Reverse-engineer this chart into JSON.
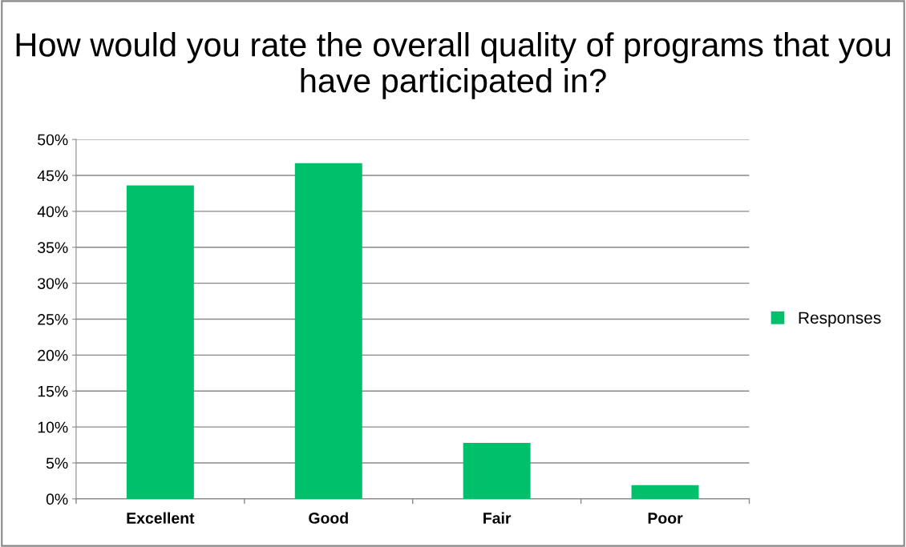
{
  "chart_data": {
    "type": "bar",
    "title": "How would you rate the overall quality of programs that you have participated in?",
    "categories": [
      "Excellent",
      "Good",
      "Fair",
      "Poor"
    ],
    "series": [
      {
        "name": "Responses",
        "color": "#00c06c",
        "values": [
          43.6,
          46.7,
          7.8,
          1.9
        ]
      }
    ],
    "ylim": [
      0,
      50
    ],
    "yticks": [
      {
        "value": 0,
        "label": "0%"
      },
      {
        "value": 5,
        "label": "5%"
      },
      {
        "value": 10,
        "label": "10%"
      },
      {
        "value": 15,
        "label": "15%"
      },
      {
        "value": 20,
        "label": "20%"
      },
      {
        "value": 25,
        "label": "25%"
      },
      {
        "value": 30,
        "label": "30%"
      },
      {
        "value": 35,
        "label": "35%"
      },
      {
        "value": 40,
        "label": "40%"
      },
      {
        "value": 45,
        "label": "45%"
      },
      {
        "value": 50,
        "label": "50%"
      }
    ],
    "grid": "y",
    "legend": "right"
  }
}
